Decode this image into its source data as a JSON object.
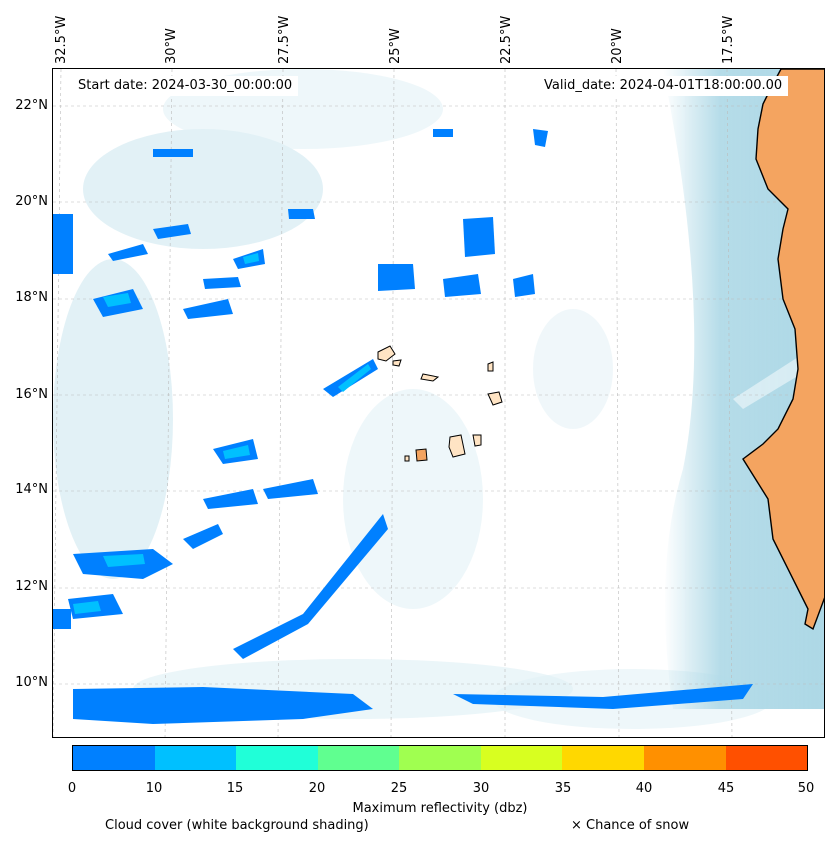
{
  "map": {
    "start_date": "Start date: 2024-03-30_00:00:00",
    "valid_date": "Valid_date: 2024-04-01T18:00:00.00",
    "lon_labels": [
      "32.5°W",
      "30°W",
      "27.5°W",
      "25°W",
      "22.5°W",
      "20°W",
      "17.5°W"
    ],
    "lat_labels": [
      "22°N",
      "20°N",
      "18°N",
      "16°N",
      "14°N",
      "12°N",
      "10°N"
    ],
    "land_color": "#f4a460",
    "ocean_shading_color": "#add8e6",
    "reflectivity_color": "#0080ff",
    "island_color": "#ffe4c4"
  },
  "colorbar": {
    "ticks": [
      "0",
      "10",
      "15",
      "20",
      "25",
      "30",
      "35",
      "40",
      "45",
      "50"
    ],
    "colors": [
      "#0080ff",
      "#00c0ff",
      "#20ffd8",
      "#60ff90",
      "#a0ff50",
      "#d8ff20",
      "#ffd800",
      "#ff9000",
      "#ff5000"
    ],
    "title": "Maximum reflectivity (dbz)"
  },
  "legend": {
    "cloud_cover": "Cloud cover (white background shading)",
    "snow": "× Chance of snow"
  }
}
